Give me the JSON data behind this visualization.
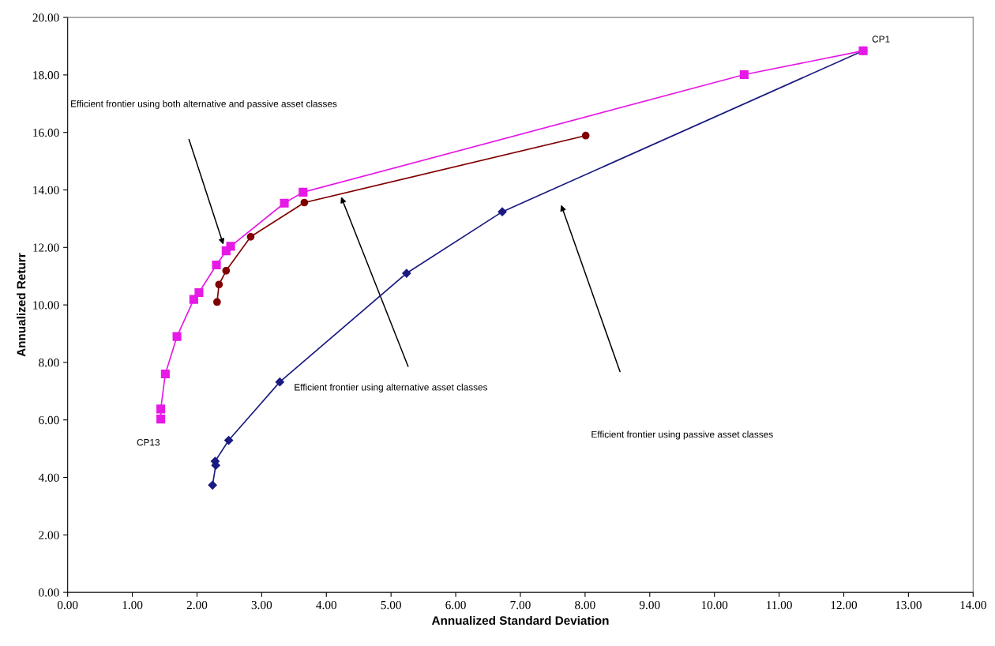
{
  "chart_data": {
    "type": "line",
    "xlabel": "Annualized Standard Deviation",
    "ylabel": "Annualized Returr",
    "series": [
      {
        "color": "#e619e6",
        "marker": "square",
        "x": [
          12.3,
          10.46,
          3.64,
          3.35,
          2.52,
          2.45,
          2.3,
          2.03,
          1.95,
          1.69,
          1.51,
          1.44,
          1.44
        ],
        "values": [
          18.84,
          18.01,
          13.92,
          13.54,
          12.04,
          11.88,
          11.39,
          10.43,
          10.19,
          8.9,
          7.6,
          6.38,
          6.03
        ]
      },
      {
        "color": "#800000",
        "marker": "circle",
        "x": [
          8.01,
          3.66,
          2.83,
          2.45,
          2.34,
          2.31
        ],
        "values": [
          15.89,
          13.56,
          12.37,
          11.19,
          10.71,
          10.1
        ]
      },
      {
        "color": "#1a1a80",
        "marker": "diamond",
        "x": [
          12.3,
          6.72,
          5.24,
          3.28,
          2.49,
          2.28,
          2.29,
          2.24
        ],
        "values": [
          18.84,
          13.24,
          11.1,
          7.32,
          5.29,
          4.56,
          4.42,
          3.73
        ]
      }
    ],
    "annotations": [
      {
        "text": "CP1",
        "x": 12.3,
        "y": 18.84
      },
      {
        "text": "CP13",
        "x": 1.44,
        "y": 6.03
      },
      "Efficient frontier using both alternative and passive asset classes",
      "Efficient frontier using alternative asset classes",
      "Efficient frontier using passive asset classes"
    ],
    "xlim": [
      0,
      14
    ],
    "ylim": [
      0,
      20
    ],
    "xticks": [
      {
        "value": 0,
        "label": "0.00"
      },
      {
        "value": 1,
        "label": "1.00"
      },
      {
        "value": 2,
        "label": "2.00"
      },
      {
        "value": 3,
        "label": "3.00"
      },
      {
        "value": 4,
        "label": "4.00"
      },
      {
        "value": 5,
        "label": "5.00"
      },
      {
        "value": 6,
        "label": "6.00"
      },
      {
        "value": 7,
        "label": "7.00"
      },
      {
        "value": 8,
        "label": "8.00"
      },
      {
        "value": 9,
        "label": "9.00"
      },
      {
        "value": 10,
        "label": "10.00"
      },
      {
        "value": 11,
        "label": "11.00"
      },
      {
        "value": 12,
        "label": "12.00"
      },
      {
        "value": 13,
        "label": "13.00"
      },
      {
        "value": 14,
        "label": "14.00"
      }
    ],
    "yticks": [
      {
        "value": 0,
        "label": "0.00"
      },
      {
        "value": 2,
        "label": "2.00"
      },
      {
        "value": 4,
        "label": "4.00"
      },
      {
        "value": 6,
        "label": "6.00"
      },
      {
        "value": 8,
        "label": "8.00"
      },
      {
        "value": 10,
        "label": "10.00"
      },
      {
        "value": 12,
        "label": "12.00"
      },
      {
        "value": 14,
        "label": "14.00"
      },
      {
        "value": 16,
        "label": "16.00"
      },
      {
        "value": 18,
        "label": "18.00"
      },
      {
        "value": 20,
        "label": "20.00"
      }
    ],
    "grid": false,
    "legend": false
  }
}
